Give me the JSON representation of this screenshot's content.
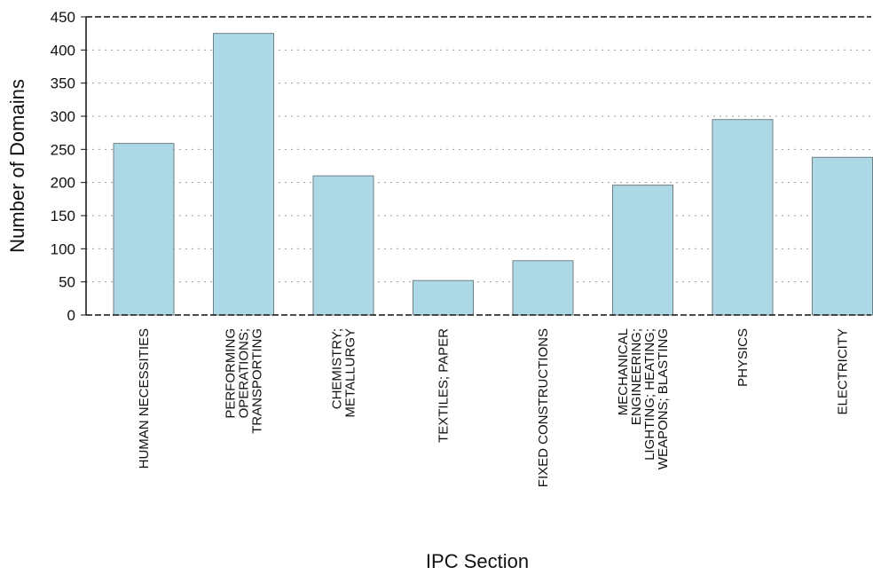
{
  "chart_data": {
    "type": "bar",
    "categories": [
      "HUMAN NECESSITIES",
      "PERFORMING OPERATIONS; TRANSPORTING",
      "CHEMISTRY; METALLURGY",
      "TEXTILES; PAPER",
      "FIXED CONSTRUCTIONS",
      "MECHANICAL ENGINEERING; LIGHTING; HEATING; WEAPONS; BLASTING",
      "PHYSICS",
      "ELECTRICITY"
    ],
    "category_label_lines": [
      [
        "HUMAN NECESSITIES"
      ],
      [
        "PERFORMING",
        "OPERATIONS;",
        "TRANSPORTING"
      ],
      [
        "CHEMISTRY;",
        "METALLURGY"
      ],
      [
        "TEXTILES; PAPER"
      ],
      [
        "FIXED CONSTRUCTIONS"
      ],
      [
        "MECHANICAL",
        "ENGINEERING;",
        "LIGHTING; HEATING;",
        "WEAPONS; BLASTING"
      ],
      [
        "PHYSICS"
      ],
      [
        "ELECTRICITY"
      ]
    ],
    "values": [
      259,
      425,
      210,
      52,
      82,
      196,
      295,
      238
    ],
    "xlabel": "IPC Section",
    "ylabel": "Number of Domains",
    "ylim": [
      0,
      450
    ],
    "yticks": [
      0,
      50,
      100,
      150,
      200,
      250,
      300,
      350,
      400,
      450
    ],
    "grid": "horizontal dotted",
    "bar_color": "#add8e6",
    "bar_edge_color": "#6f7f86"
  }
}
